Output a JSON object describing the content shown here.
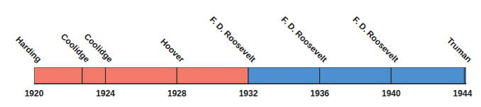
{
  "chart_data": {
    "type": "timeline",
    "series": [
      {
        "name": "Harding",
        "start": 1920,
        "end": 1922.7,
        "color": "#f47b6c"
      },
      {
        "name": "Coolidge",
        "start": 1922.7,
        "end": 1924,
        "color": "#f47b6c"
      },
      {
        "name": "Coolidge",
        "start": 1924,
        "end": 1928,
        "color": "#f47b6c"
      },
      {
        "name": "Hoover",
        "start": 1928,
        "end": 1932,
        "color": "#f47b6c"
      },
      {
        "name": "F. D. Roosevelt",
        "start": 1932,
        "end": 1936,
        "color": "#4d8fcf"
      },
      {
        "name": "F. D. Roosevelt",
        "start": 1936,
        "end": 1940,
        "color": "#4d8fcf"
      },
      {
        "name": "F. D. Roosevelt",
        "start": 1940,
        "end": 1944.1,
        "color": "#4d8fcf"
      },
      {
        "name": "Truman",
        "start": 1944.1,
        "end": 1944.2,
        "color": "#4d8fcf"
      }
    ],
    "xlim": [
      1920,
      1944.2
    ],
    "xticks": [
      1920,
      1924,
      1928,
      1932,
      1936,
      1940,
      1944
    ],
    "tick_labels": "x"
  }
}
